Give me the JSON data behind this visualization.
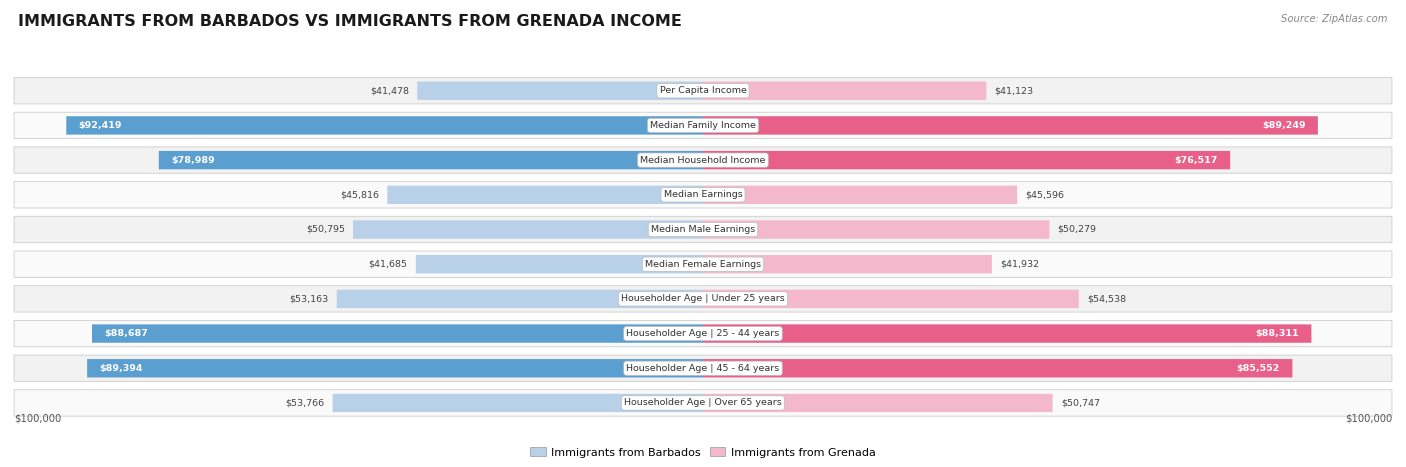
{
  "title": "IMMIGRANTS FROM BARBADOS VS IMMIGRANTS FROM GRENADA INCOME",
  "source": "Source: ZipAtlas.com",
  "categories": [
    "Per Capita Income",
    "Median Family Income",
    "Median Household Income",
    "Median Earnings",
    "Median Male Earnings",
    "Median Female Earnings",
    "Householder Age | Under 25 years",
    "Householder Age | 25 - 44 years",
    "Householder Age | 45 - 64 years",
    "Householder Age | Over 65 years"
  ],
  "barbados_values": [
    41478,
    92419,
    78989,
    45816,
    50795,
    41685,
    53163,
    88687,
    89394,
    53766
  ],
  "grenada_values": [
    41123,
    89249,
    76517,
    45596,
    50279,
    41932,
    54538,
    88311,
    85552,
    50747
  ],
  "barbados_labels": [
    "$41,478",
    "$92,419",
    "$78,989",
    "$45,816",
    "$50,795",
    "$41,685",
    "$53,163",
    "$88,687",
    "$89,394",
    "$53,766"
  ],
  "grenada_labels": [
    "$41,123",
    "$89,249",
    "$76,517",
    "$45,596",
    "$50,279",
    "$41,932",
    "$54,538",
    "$88,311",
    "$85,552",
    "$50,747"
  ],
  "max_value": 100000,
  "bar_color_barbados_light": "#b8d0e8",
  "bar_color_grenada_light": "#f4b8cc",
  "bar_color_barbados_dark": "#5b9fd0",
  "bar_color_grenada_dark": "#e8608a",
  "row_bg_odd": "#f2f2f2",
  "row_bg_even": "#fafafa",
  "legend_barbados": "Immigrants from Barbados",
  "legend_grenada": "Immigrants from Grenada",
  "axis_label_left": "$100,000",
  "axis_label_right": "$100,000",
  "threshold_dark": 70000
}
